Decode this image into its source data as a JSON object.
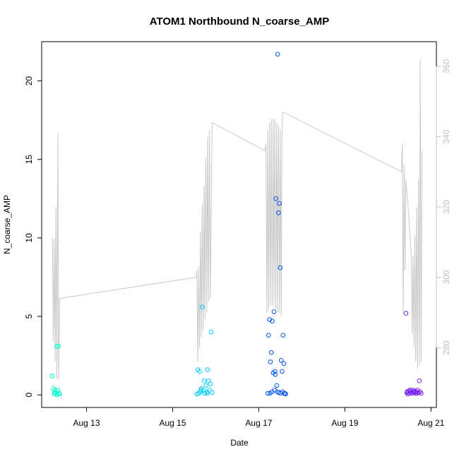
{
  "chart_data": {
    "type": "scatter",
    "title": "ATOM1 Northbound N_coarse_AMP",
    "xlabel": "Date",
    "ylabel": "N_coarse_AMP",
    "xlim": [
      "2021-08-11T23:00",
      "2021-08-21T03:00"
    ],
    "ylim": [
      -0.8,
      22.5
    ],
    "y_ticks": [
      0,
      5,
      10,
      15,
      20
    ],
    "x_ticks": [
      {
        "label": "Aug 13",
        "value": "2021-08-13T00:00"
      },
      {
        "label": "Aug 15",
        "value": "2021-08-15T00:00"
      },
      {
        "label": "Aug 17",
        "value": "2021-08-17T00:00"
      },
      {
        "label": "Aug 19",
        "value": "2021-08-19T00:00"
      },
      {
        "label": "Aug 21",
        "value": "2021-08-21T00:00"
      }
    ],
    "secondary_axis": {
      "ylim": [
        263,
        367
      ],
      "ticks": [
        280,
        300,
        320,
        340,
        360
      ],
      "color": "#c0c0c0"
    },
    "grid": false,
    "series": [
      {
        "color": "#00ffcc",
        "points": [
          [
            "2021-08-12T05:00",
            1.2
          ],
          [
            "2021-08-12T05:30",
            0.4
          ],
          [
            "2021-08-12T06:00",
            0.05
          ],
          [
            "2021-08-12T06:30",
            0.3
          ],
          [
            "2021-08-12T07:00",
            0.1
          ],
          [
            "2021-08-12T07:20",
            3.1
          ],
          [
            "2021-08-12T07:40",
            0.02
          ],
          [
            "2021-08-12T08:00",
            0.3
          ],
          [
            "2021-08-12T08:20",
            3.1
          ],
          [
            "2021-08-12T08:40",
            0.1
          ],
          [
            "2021-08-12T09:00",
            0.05
          ],
          [
            "2021-08-12T06:15",
            0.15
          ]
        ]
      },
      {
        "color": "#00ccff",
        "points": [
          [
            "2021-08-15T14:00",
            1.6
          ],
          [
            "2021-08-15T14:30",
            0.1
          ],
          [
            "2021-08-15T15:00",
            1.5
          ],
          [
            "2021-08-15T15:30",
            0.2
          ],
          [
            "2021-08-15T16:00",
            0.4
          ],
          [
            "2021-08-15T16:30",
            5.6
          ],
          [
            "2021-08-15T17:00",
            0.3
          ],
          [
            "2021-08-15T17:30",
            0.9
          ],
          [
            "2021-08-15T18:00",
            0.1
          ],
          [
            "2021-08-15T18:30",
            0.6
          ],
          [
            "2021-08-15T19:00",
            0.2
          ],
          [
            "2021-08-15T19:30",
            1.6
          ],
          [
            "2021-08-15T20:00",
            0.9
          ],
          [
            "2021-08-15T20:30",
            0.3
          ],
          [
            "2021-08-15T21:00",
            0.7
          ],
          [
            "2021-08-15T21:30",
            4.0
          ],
          [
            "2021-08-15T22:00",
            0.15
          ],
          [
            "2021-08-15T13:30",
            0.05
          ],
          [
            "2021-08-15T15:45",
            0.3
          ],
          [
            "2021-08-15T19:15",
            0.1
          ]
        ]
      },
      {
        "color": "#0055ee",
        "points": [
          [
            "2021-08-17T05:00",
            0.1
          ],
          [
            "2021-08-17T05:30",
            3.8
          ],
          [
            "2021-08-17T06:00",
            4.8
          ],
          [
            "2021-08-17T06:30",
            2.1
          ],
          [
            "2021-08-17T07:00",
            2.7
          ],
          [
            "2021-08-17T07:30",
            4.7
          ],
          [
            "2021-08-17T08:00",
            1.4
          ],
          [
            "2021-08-17T08:30",
            5.3
          ],
          [
            "2021-08-17T09:00",
            1.5
          ],
          [
            "2021-08-17T09:30",
            12.5
          ],
          [
            "2021-08-17T10:00",
            0.6
          ],
          [
            "2021-08-17T10:30",
            21.7
          ],
          [
            "2021-08-17T11:00",
            11.6
          ],
          [
            "2021-08-17T11:30",
            12.2
          ],
          [
            "2021-08-17T12:00",
            8.1
          ],
          [
            "2021-08-17T12:30",
            2.2
          ],
          [
            "2021-08-17T13:00",
            1.5
          ],
          [
            "2021-08-17T13:30",
            3.8
          ],
          [
            "2021-08-17T14:00",
            2.0
          ],
          [
            "2021-08-17T14:30",
            0.1
          ],
          [
            "2021-08-17T15:00",
            0.05
          ],
          [
            "2021-08-17T07:15",
            0.2
          ],
          [
            "2021-08-17T08:45",
            0.3
          ],
          [
            "2021-08-17T09:15",
            1.3
          ],
          [
            "2021-08-17T10:15",
            0.2
          ],
          [
            "2021-08-17T11:15",
            0.15
          ],
          [
            "2021-08-17T12:15",
            0.1
          ],
          [
            "2021-08-17T13:15",
            0.2
          ],
          [
            "2021-08-17T06:15",
            0.1
          ],
          [
            "2021-08-17T14:15",
            0.1
          ]
        ]
      },
      {
        "color": "#7722ee",
        "points": [
          [
            "2021-08-20T10:00",
            5.2
          ],
          [
            "2021-08-20T10:30",
            0.15
          ],
          [
            "2021-08-20T11:00",
            0.05
          ],
          [
            "2021-08-20T11:30",
            0.25
          ],
          [
            "2021-08-20T12:00",
            0.1
          ],
          [
            "2021-08-20T12:30",
            0.3
          ],
          [
            "2021-08-20T13:00",
            0.2
          ],
          [
            "2021-08-20T13:30",
            0.1
          ],
          [
            "2021-08-20T14:00",
            0.3
          ],
          [
            "2021-08-20T14:30",
            0.15
          ],
          [
            "2021-08-20T15:00",
            0.25
          ],
          [
            "2021-08-20T15:30",
            0.1
          ],
          [
            "2021-08-20T16:00",
            0.2
          ],
          [
            "2021-08-20T16:30",
            0.3
          ],
          [
            "2021-08-20T17:00",
            0.15
          ],
          [
            "2021-08-20T17:30",
            0.9
          ],
          [
            "2021-08-20T18:00",
            0.2
          ],
          [
            "2021-08-20T18:30",
            0.1
          ],
          [
            "2021-08-20T10:45",
            0.2
          ],
          [
            "2021-08-20T12:15",
            0.3
          ],
          [
            "2021-08-20T14:15",
            0.2
          ],
          [
            "2021-08-20T16:15",
            0.1
          ]
        ]
      }
    ],
    "secondary_line": {
      "color": "#c8c8c8",
      "points": [
        [
          "2021-08-12T05:00",
          311
        ],
        [
          "2021-08-12T05:30",
          282
        ],
        [
          "2021-08-12T06:00",
          311
        ],
        [
          "2021-08-12T06:30",
          276
        ],
        [
          "2021-08-12T07:00",
          320
        ],
        [
          "2021-08-12T07:30",
          271
        ],
        [
          "2021-08-12T08:00",
          341
        ],
        [
          "2021-08-12T08:30",
          271
        ],
        [
          "2021-08-12T09:00",
          294
        ],
        [
          "2021-08-15T13:00",
          300
        ],
        [
          "2021-08-15T13:30",
          302
        ],
        [
          "2021-08-15T14:00",
          276
        ],
        [
          "2021-08-15T14:30",
          303
        ],
        [
          "2021-08-15T15:00",
          280
        ],
        [
          "2021-08-15T15:30",
          313
        ],
        [
          "2021-08-15T16:00",
          283
        ],
        [
          "2021-08-15T16:30",
          321
        ],
        [
          "2021-08-15T17:00",
          285
        ],
        [
          "2021-08-15T17:30",
          326
        ],
        [
          "2021-08-15T18:00",
          288
        ],
        [
          "2021-08-15T18:30",
          334
        ],
        [
          "2021-08-15T19:00",
          290
        ],
        [
          "2021-08-15T19:30",
          340
        ],
        [
          "2021-08-15T20:00",
          293
        ],
        [
          "2021-08-15T20:30",
          342
        ],
        [
          "2021-08-15T21:00",
          294
        ],
        [
          "2021-08-15T22:00",
          344
        ],
        [
          "2021-08-17T03:30",
          336
        ],
        [
          "2021-08-17T04:00",
          338
        ],
        [
          "2021-08-17T04:30",
          290
        ],
        [
          "2021-08-17T05:00",
          342
        ],
        [
          "2021-08-17T05:30",
          291
        ],
        [
          "2021-08-17T06:00",
          344
        ],
        [
          "2021-08-17T06:30",
          292
        ],
        [
          "2021-08-17T07:00",
          345
        ],
        [
          "2021-08-17T07:30",
          292
        ],
        [
          "2021-08-17T08:00",
          345
        ],
        [
          "2021-08-17T08:30",
          292
        ],
        [
          "2021-08-17T09:00",
          345
        ],
        [
          "2021-08-17T09:30",
          291
        ],
        [
          "2021-08-17T10:00",
          344
        ],
        [
          "2021-08-17T10:30",
          290
        ],
        [
          "2021-08-17T11:00",
          343
        ],
        [
          "2021-08-17T11:30",
          290
        ],
        [
          "2021-08-17T12:00",
          342
        ],
        [
          "2021-08-17T12:30",
          289
        ],
        [
          "2021-08-17T13:00",
          344
        ],
        [
          "2021-08-17T13:30",
          347
        ],
        [
          "2021-08-20T07:30",
          330
        ],
        [
          "2021-08-20T08:00",
          338
        ],
        [
          "2021-08-20T08:30",
          290
        ],
        [
          "2021-08-20T09:00",
          332
        ],
        [
          "2021-08-20T09:30",
          302
        ],
        [
          "2021-08-20T10:00",
          328
        ],
        [
          "2021-08-20T10:30",
          324
        ],
        [
          "2021-08-20T11:00",
          322
        ],
        [
          "2021-08-20T11:30",
          318
        ],
        [
          "2021-08-20T12:00",
          314
        ],
        [
          "2021-08-20T12:30",
          310
        ],
        [
          "2021-08-20T13:00",
          306
        ],
        [
          "2021-08-20T13:30",
          284
        ],
        [
          "2021-08-20T14:00",
          306
        ],
        [
          "2021-08-20T14:30",
          280
        ],
        [
          "2021-08-20T15:00",
          312
        ],
        [
          "2021-08-20T15:30",
          276
        ],
        [
          "2021-08-20T16:00",
          320
        ],
        [
          "2021-08-20T16:30",
          274
        ],
        [
          "2021-08-20T17:00",
          328
        ],
        [
          "2021-08-20T17:30",
          275
        ],
        [
          "2021-08-20T18:00",
          362
        ],
        [
          "2021-08-20T18:30",
          276
        ],
        [
          "2021-08-20T19:00",
          336
        ]
      ]
    }
  }
}
